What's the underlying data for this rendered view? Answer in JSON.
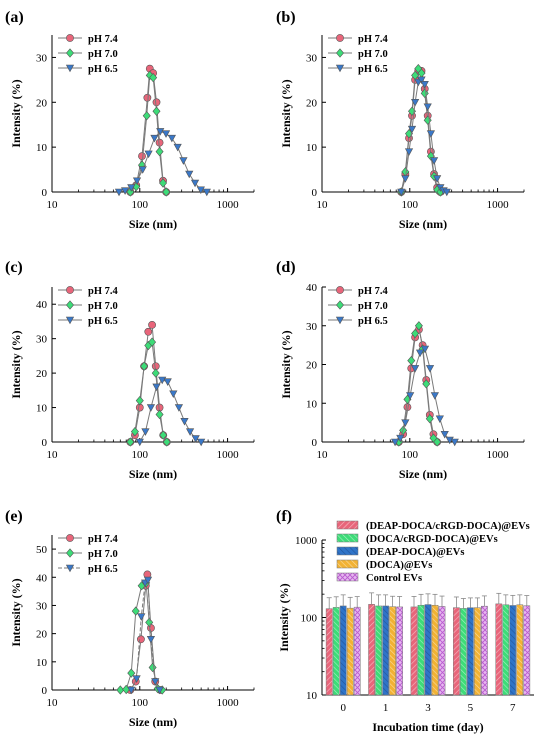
{
  "colors": {
    "pH 7.4": "#e8657a",
    "pH 7.0": "#3ddc78",
    "pH 6.5": "#3a78c8",
    "line": "#7a7a7a",
    "bar_colors": [
      "#e8657a",
      "#3ddc78",
      "#2f74c8",
      "#f2b233",
      "#d58ee6"
    ]
  },
  "chart_data": [
    {
      "id": "a",
      "panel_label": "(a)",
      "type": "line",
      "xscale": "log",
      "xlabel": "Size (nm)",
      "ylabel": "Intensity (%)",
      "xlim": [
        10,
        2000
      ],
      "ylim": [
        0,
        35
      ],
      "yticks": [
        0,
        10,
        20,
        30
      ],
      "xticks": [
        10,
        100,
        1000
      ],
      "xtick_labels": [
        "10",
        "100",
        "1000"
      ],
      "series": [
        {
          "name": "pH 7.4",
          "marker": "circle",
          "points": [
            [
              78,
              0
            ],
            [
              91,
              1.5
            ],
            [
              106,
              8
            ],
            [
              122,
              21
            ],
            [
              130,
              27.5
            ],
            [
              142,
              26.5
            ],
            [
              155,
              20
            ],
            [
              168,
              11
            ],
            [
              184,
              2.5
            ],
            [
              200,
              0
            ]
          ]
        },
        {
          "name": "pH 7.0",
          "marker": "diamond",
          "points": [
            [
              78,
              0
            ],
            [
              91,
              1.2
            ],
            [
              106,
              6
            ],
            [
              120,
              17
            ],
            [
              130,
              26
            ],
            [
              142,
              25.5
            ],
            [
              155,
              18
            ],
            [
              168,
              9
            ],
            [
              184,
              2
            ],
            [
              200,
              0
            ]
          ]
        },
        {
          "name": "pH 6.5",
          "marker": "triangle",
          "points": [
            [
              58,
              0
            ],
            [
              68,
              0.3
            ],
            [
              80,
              1
            ],
            [
              93,
              2.5
            ],
            [
              108,
              5
            ],
            [
              126,
              8.5
            ],
            [
              147,
              12
            ],
            [
              171,
              13.5
            ],
            [
              199,
              13
            ],
            [
              232,
              12
            ],
            [
              270,
              10
            ],
            [
              314,
              7
            ],
            [
              366,
              4
            ],
            [
              426,
              2
            ],
            [
              496,
              0.5
            ],
            [
              580,
              0
            ]
          ]
        }
      ]
    },
    {
      "id": "b",
      "panel_label": "(b)",
      "type": "line",
      "xscale": "log",
      "xlabel": "Size (nm)",
      "ylabel": "Intensity (%)",
      "xlim": [
        10,
        2000
      ],
      "ylim": [
        0,
        35
      ],
      "yticks": [
        0,
        10,
        20,
        30
      ],
      "xticks": [
        10,
        100,
        1000
      ],
      "xtick_labels": [
        "10",
        "100",
        "1000"
      ],
      "series": [
        {
          "name": "pH 7.4",
          "marker": "circle",
          "points": [
            [
              80,
              0
            ],
            [
              89,
              4
            ],
            [
              98,
              12
            ],
            [
              106,
              17
            ],
            [
              115,
              25
            ],
            [
              125,
              27
            ],
            [
              136,
              27
            ],
            [
              148,
              23
            ],
            [
              160,
              17
            ],
            [
              174,
              9
            ],
            [
              189,
              4
            ],
            [
              205,
              1
            ],
            [
              223,
              0
            ]
          ]
        },
        {
          "name": "pH 7.0",
          "marker": "diamond",
          "points": [
            [
              80,
              0
            ],
            [
              89,
              4.5
            ],
            [
              98,
              13
            ],
            [
              106,
              18
            ],
            [
              115,
              26
            ],
            [
              125,
              27.5
            ],
            [
              136,
              26.5
            ],
            [
              148,
              22
            ],
            [
              160,
              16
            ],
            [
              174,
              8
            ],
            [
              189,
              3.5
            ],
            [
              205,
              0.5
            ],
            [
              223,
              0
            ]
          ]
        },
        {
          "name": "pH 6.5",
          "marker": "triangle",
          "points": [
            [
              80,
              0
            ],
            [
              89,
              3
            ],
            [
              98,
              9
            ],
            [
              106,
              14
            ],
            [
              115,
              20
            ],
            [
              125,
              24.5
            ],
            [
              136,
              25
            ],
            [
              148,
              24
            ],
            [
              160,
              19
            ],
            [
              174,
              13
            ],
            [
              189,
              7
            ],
            [
              205,
              3
            ],
            [
              223,
              1
            ],
            [
              243,
              0.3
            ],
            [
              264,
              0
            ]
          ]
        }
      ]
    },
    {
      "id": "c",
      "panel_label": "(c)",
      "type": "line",
      "xscale": "log",
      "xlabel": "Size (nm)",
      "ylabel": "Intensity (%)",
      "xlim": [
        10,
        2000
      ],
      "ylim": [
        0,
        45
      ],
      "yticks": [
        0,
        10,
        20,
        30,
        40
      ],
      "xticks": [
        10,
        100,
        1000
      ],
      "xtick_labels": [
        "10",
        "100",
        "1000"
      ],
      "series": [
        {
          "name": "pH 7.4",
          "marker": "circle",
          "points": [
            [
              78,
              0
            ],
            [
              88,
              2
            ],
            [
              100,
              10
            ],
            [
              112,
              22
            ],
            [
              125,
              32
            ],
            [
              138,
              34
            ],
            [
              152,
              22
            ],
            [
              168,
              10
            ],
            [
              185,
              2
            ],
            [
              203,
              0
            ]
          ]
        },
        {
          "name": "pH 7.0",
          "marker": "diamond",
          "points": [
            [
              78,
              0
            ],
            [
              88,
              3
            ],
            [
              100,
              12
            ],
            [
              112,
              22
            ],
            [
              125,
              28
            ],
            [
              138,
              29
            ],
            [
              152,
              20
            ],
            [
              168,
              8
            ],
            [
              185,
              2
            ],
            [
              203,
              0
            ]
          ]
        },
        {
          "name": "pH 6.5",
          "marker": "triangle",
          "points": [
            [
              100,
              0
            ],
            [
              116,
              3
            ],
            [
              134,
              10
            ],
            [
              155,
              16
            ],
            [
              180,
              18
            ],
            [
              208,
              17.5
            ],
            [
              241,
              14
            ],
            [
              279,
              10
            ],
            [
              323,
              6
            ],
            [
              374,
              3
            ],
            [
              433,
              1
            ],
            [
              500,
              0
            ]
          ]
        }
      ]
    },
    {
      "id": "d",
      "panel_label": "(d)",
      "type": "line",
      "xscale": "log",
      "xlabel": "Size (nm)",
      "ylabel": "Intensity (%)",
      "xlim": [
        10,
        2000
      ],
      "ylim": [
        0,
        40
      ],
      "yticks": [
        0,
        10,
        20,
        30,
        40
      ],
      "xticks": [
        10,
        100,
        1000
      ],
      "xtick_labels": [
        "10",
        "100",
        "1000"
      ],
      "series": [
        {
          "name": "pH 7.4",
          "marker": "circle",
          "points": [
            [
              75,
              0
            ],
            [
              84,
              2
            ],
            [
              94,
              9
            ],
            [
              104,
              19
            ],
            [
              115,
              27
            ],
            [
              127,
              29
            ],
            [
              140,
              25
            ],
            [
              154,
              16
            ],
            [
              169,
              7
            ],
            [
              186,
              2
            ],
            [
              205,
              0
            ]
          ]
        },
        {
          "name": "pH 7.0",
          "marker": "diamond",
          "points": [
            [
              75,
              0
            ],
            [
              84,
              3
            ],
            [
              94,
              11
            ],
            [
              104,
              21
            ],
            [
              115,
              28
            ],
            [
              127,
              30
            ],
            [
              140,
              24
            ],
            [
              154,
              15
            ],
            [
              169,
              6
            ],
            [
              186,
              1
            ],
            [
              205,
              0
            ]
          ]
        },
        {
          "name": "pH 6.5",
          "marker": "triangle",
          "points": [
            [
              68,
              0
            ],
            [
              78,
              1
            ],
            [
              89,
              5
            ],
            [
              101,
              12
            ],
            [
              115,
              19
            ],
            [
              131,
              23
            ],
            [
              149,
              24
            ],
            [
              170,
              19
            ],
            [
              193,
              12
            ],
            [
              220,
              6
            ],
            [
              250,
              2
            ],
            [
              285,
              0.5
            ],
            [
              325,
              0
            ]
          ]
        }
      ]
    },
    {
      "id": "e",
      "panel_label": "(e)",
      "type": "line",
      "xscale": "log",
      "xlabel": "Size (nm)",
      "ylabel": "Intensity (%)",
      "xlim": [
        10,
        2000
      ],
      "ylim": [
        0,
        55
      ],
      "yticks": [
        0,
        10,
        20,
        30,
        40,
        50
      ],
      "xticks": [
        10,
        100,
        1000
      ],
      "xtick_labels": [
        "10",
        "100",
        "1000"
      ],
      "series": [
        {
          "name": "pH 7.4",
          "marker": "circle",
          "points": [
            [
              78,
              0
            ],
            [
              90,
              3
            ],
            [
              103,
              18
            ],
            [
              117,
              37
            ],
            [
              122,
              41
            ],
            [
              134,
              22
            ],
            [
              150,
              3
            ],
            [
              172,
              0
            ]
          ]
        },
        {
          "name": "pH 7.0",
          "marker": "diamond",
          "points": [
            [
              60,
              0
            ],
            [
              70,
              0.2
            ],
            [
              80,
              6
            ],
            [
              90,
              28
            ],
            [
              105,
              37
            ],
            [
              118,
              38
            ],
            [
              128,
              24
            ],
            [
              140,
              8
            ],
            [
              160,
              0.5
            ],
            [
              180,
              0
            ]
          ]
        },
        {
          "name": "pH 6.5",
          "marker": "triangle",
          "points": [
            [
              80,
              0
            ],
            [
              92,
              4
            ],
            [
              104,
              26
            ],
            [
              115,
              38
            ],
            [
              124,
              39
            ],
            [
              134,
              18
            ],
            [
              150,
              3
            ],
            [
              168,
              0
            ]
          ]
        }
      ]
    },
    {
      "id": "f",
      "panel_label": "(f)",
      "type": "bar",
      "yscale": "log",
      "xlabel": "Incubation time (day)",
      "ylabel": "Intensity (%)",
      "categories": [
        "0",
        "1",
        "3",
        "5",
        "7"
      ],
      "ylim": [
        10,
        1000
      ],
      "yticks": [
        10,
        100,
        1000
      ],
      "ytick_labels": [
        "10",
        "100",
        "1000"
      ],
      "series": [
        {
          "name": "(DEAP-DOCA/cRGD-DOCA)@EVs",
          "values": [
            130,
            148,
            137,
            134,
            150
          ],
          "errors": [
            50,
            60,
            50,
            50,
            55
          ]
        },
        {
          "name": "(DOCA/cRGD-DOCA)@EVs",
          "values": [
            135,
            141,
            144,
            131,
            146
          ],
          "errors": [
            50,
            55,
            55,
            45,
            50
          ]
        },
        {
          "name": "(DEAP-DOCA)@EVs",
          "values": [
            141,
            141,
            147,
            134,
            143
          ],
          "errors": [
            55,
            55,
            55,
            45,
            50
          ]
        },
        {
          "name": "(DOCA)@EVs",
          "values": [
            132,
            138,
            144,
            134,
            146
          ],
          "errors": [
            50,
            50,
            55,
            45,
            50
          ]
        },
        {
          "name": "Control EVs",
          "values": [
            136,
            137,
            139,
            140,
            142
          ],
          "errors": [
            50,
            50,
            50,
            50,
            50
          ]
        }
      ]
    }
  ]
}
